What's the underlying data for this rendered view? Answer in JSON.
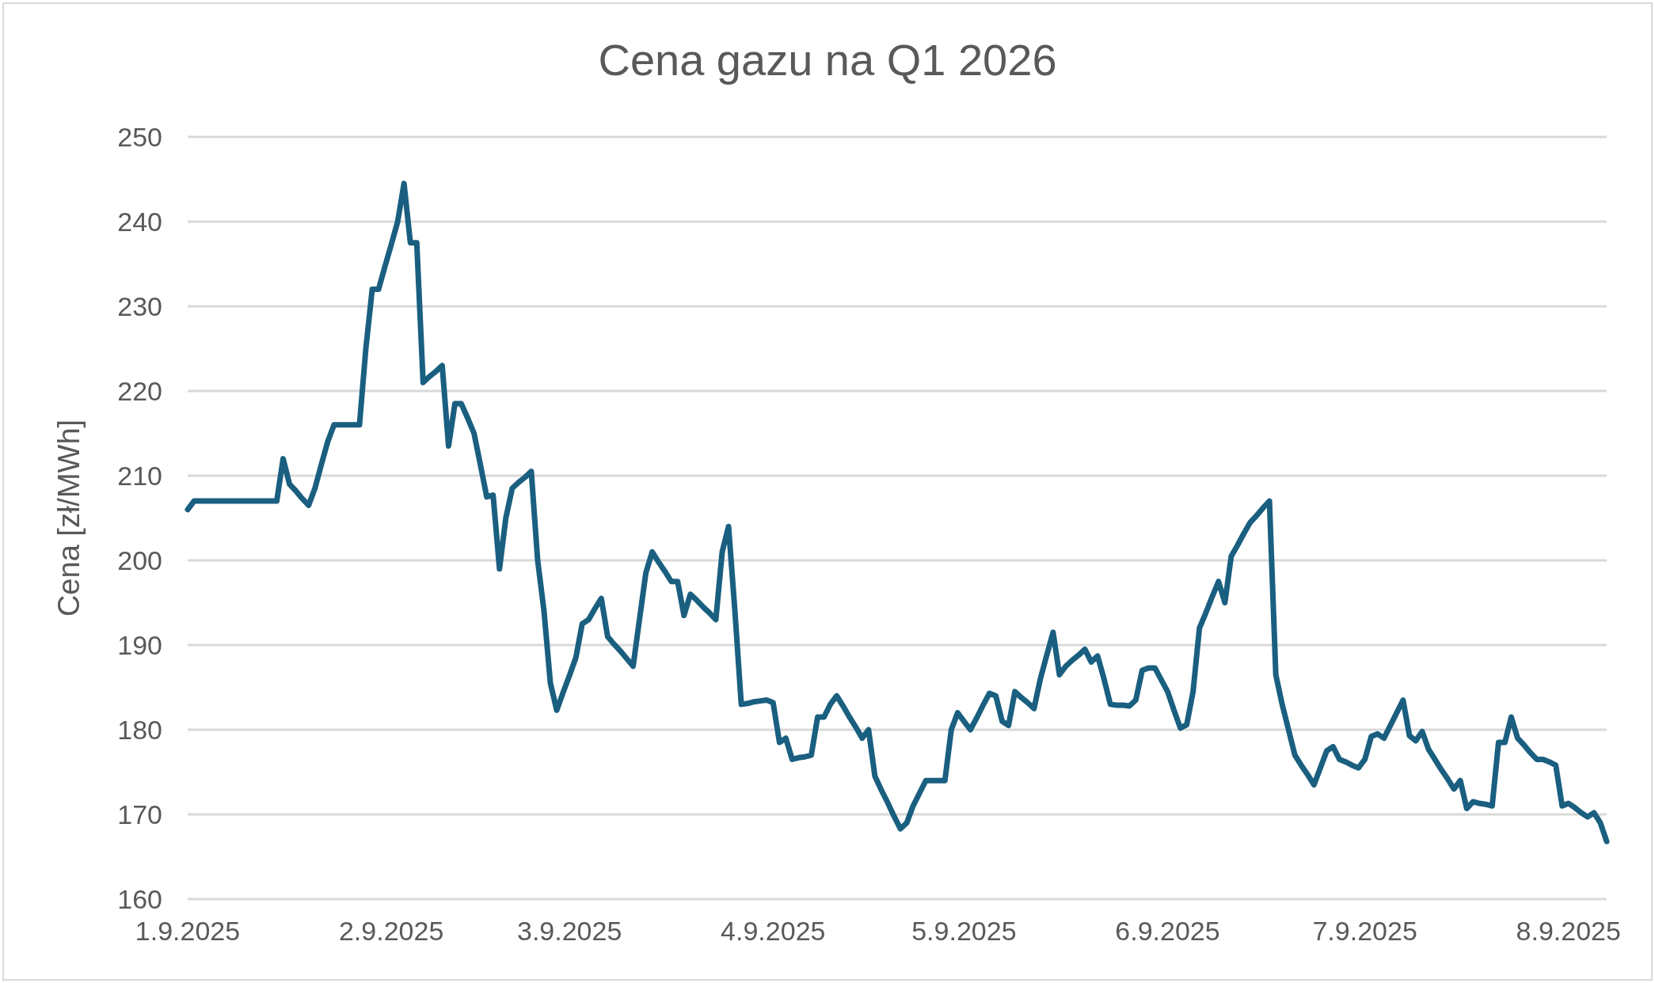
{
  "chart_data": {
    "type": "line",
    "title": "Cena gazu na Q1 2026",
    "ylabel": "Cena [zł/MWh]",
    "categories": [
      "1.9.2025",
      null,
      null,
      null,
      null,
      null,
      null,
      null,
      null,
      null,
      null,
      null,
      null,
      null,
      null,
      null,
      null,
      null,
      null,
      null,
      null,
      null,
      null,
      null,
      null,
      null,
      null,
      null,
      null,
      null,
      null,
      null,
      "2.9.2025",
      null,
      null,
      null,
      null,
      null,
      null,
      null,
      null,
      null,
      null,
      null,
      null,
      null,
      null,
      null,
      null,
      null,
      null,
      null,
      null,
      null,
      null,
      null,
      null,
      null,
      null,
      null,
      "3.9.2025",
      null,
      null,
      null,
      null,
      null,
      null,
      null,
      null,
      null,
      null,
      null,
      null,
      null,
      null,
      null,
      null,
      null,
      null,
      null,
      null,
      null,
      null,
      null,
      null,
      null,
      null,
      null,
      null,
      null,
      null,
      null,
      "4.9.2025",
      null,
      null,
      null,
      null,
      null,
      null,
      null,
      null,
      null,
      null,
      null,
      null,
      null,
      null,
      null,
      null,
      null,
      null,
      null,
      null,
      null,
      null,
      null,
      null,
      null,
      null,
      null,
      null,
      null,
      "5.9.2025",
      null,
      null,
      null,
      null,
      null,
      null,
      null,
      null,
      null,
      null,
      null,
      null,
      null,
      null,
      null,
      null,
      null,
      null,
      null,
      null,
      null,
      null,
      null,
      null,
      null,
      null,
      null,
      null,
      null,
      null,
      null,
      "6.9.2025",
      null,
      null,
      null,
      null,
      null,
      null,
      null,
      null,
      null,
      null,
      null,
      null,
      null,
      null,
      null,
      null,
      null,
      null,
      null,
      null,
      null,
      null,
      null,
      null,
      null,
      null,
      null,
      null,
      null,
      null,
      "7.9.2025",
      null,
      null,
      null,
      null,
      null,
      null,
      null,
      null,
      null,
      null,
      null,
      null,
      null,
      null,
      null,
      null,
      null,
      null,
      null,
      null,
      null,
      null,
      null,
      null,
      null,
      null,
      null,
      null,
      null,
      null,
      null,
      "8.9.2025",
      null,
      null,
      null,
      null,
      null,
      null
    ],
    "series": [
      {
        "color": "#1a5f80",
        "values": [
          206,
          207,
          207,
          207,
          207,
          207,
          207,
          207,
          207,
          207,
          207,
          207,
          207,
          207,
          207,
          212,
          209,
          208.2,
          207.3,
          206.5,
          208.5,
          211.3,
          214,
          216,
          216,
          216,
          216,
          216,
          225,
          232,
          232,
          234.7,
          237.3,
          240,
          244.5,
          237.5,
          237.5,
          221,
          221.7,
          222.3,
          223,
          213.5,
          218.5,
          218.5,
          216.8,
          215,
          211.3,
          207.5,
          207.7,
          199,
          205,
          208.5,
          209.2,
          209.8,
          210.5,
          200,
          194,
          185.5,
          182.3,
          184.4,
          186.4,
          188.5,
          192.5,
          193,
          194.3,
          195.5,
          191,
          190.1,
          189.3,
          188.4,
          187.5,
          193,
          198.5,
          201,
          199.8,
          198.7,
          197.5,
          197.5,
          193.5,
          196,
          195.3,
          194.5,
          193.8,
          193,
          201,
          204,
          194,
          183,
          183.1,
          183.3,
          183.4,
          183.5,
          183.2,
          178.5,
          179,
          176.5,
          176.7,
          176.8,
          177,
          181.5,
          181.5,
          183,
          184,
          182.8,
          181.5,
          180.3,
          179,
          180,
          174.5,
          172.9,
          171.4,
          169.8,
          168.3,
          169,
          171,
          172.5,
          174,
          174,
          174,
          174,
          180,
          182,
          181,
          180,
          181.4,
          182.9,
          184.3,
          184,
          181,
          180.5,
          184.5,
          183.8,
          183.2,
          182.5,
          186,
          188.8,
          191.5,
          186.5,
          187.5,
          188.2,
          188.8,
          189.5,
          188,
          188.7,
          186,
          183,
          182.9,
          182.9,
          182.8,
          183.5,
          187,
          187.3,
          187.3,
          185.9,
          184.5,
          182.3,
          180.2,
          180.6,
          184.5,
          192,
          193.8,
          195.7,
          197.5,
          195,
          200.5,
          201.8,
          203.2,
          204.5,
          205.3,
          206.2,
          207,
          186.5,
          183,
          180,
          177,
          175.8,
          174.7,
          173.5,
          175.5,
          177.5,
          178,
          176.5,
          176.2,
          175.8,
          175.5,
          176.5,
          179.2,
          179.5,
          179,
          180.5,
          182,
          183.5,
          179.3,
          178.7,
          179.8,
          177.7,
          176.5,
          175.3,
          174.2,
          173,
          174,
          170.7,
          171.5,
          171.3,
          171.2,
          171,
          178.5,
          178.5,
          181.5,
          179,
          178.2,
          177.3,
          176.5,
          176.5,
          176.2,
          175.8,
          171,
          171.3,
          170.8,
          170.2,
          169.7,
          170.2,
          169,
          166.8
        ]
      }
    ],
    "ylim": [
      160,
      250
    ],
    "yticks": [
      160,
      170,
      180,
      190,
      200,
      210,
      220,
      230,
      240,
      250
    ],
    "grid": "y",
    "marker": "none",
    "line_style": "solid"
  }
}
